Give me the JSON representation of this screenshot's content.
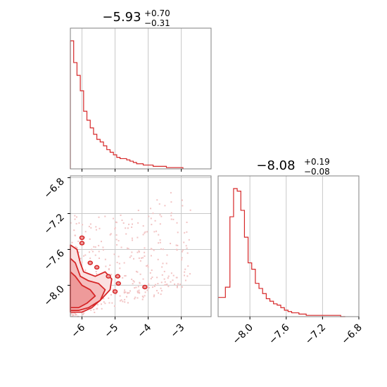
{
  "chart_data": [
    {
      "type": "histogram",
      "panel": "top-left",
      "title": {
        "median": "−5.93",
        "plus": "+0.70",
        "minus": "−0.31"
      },
      "xlim": [
        -6.35,
        -2.1
      ],
      "bin_edges": [
        -6.35,
        -6.25,
        -6.15,
        -6.05,
        -5.95,
        -5.85,
        -5.75,
        -5.65,
        -5.55,
        -5.45,
        -5.35,
        -5.25,
        -5.15,
        -5.05,
        -4.95,
        -4.85,
        -4.75,
        -4.65,
        -4.55,
        -4.45,
        -4.35,
        -4.25,
        -4.15,
        -4.05,
        -3.95,
        -3.85,
        -3.75,
        -3.65,
        -3.55,
        -3.45,
        -3.35,
        -3.25,
        -3.15,
        -3.05,
        -2.95
      ],
      "counts": [
        100,
        83,
        73,
        61,
        45,
        38,
        32,
        27,
        23,
        21,
        18,
        15,
        13,
        11,
        9,
        8,
        8,
        7,
        6,
        5,
        4,
        4,
        3,
        3,
        3,
        2,
        2,
        2,
        2,
        1,
        1,
        1,
        1,
        1
      ],
      "grid": true,
      "grid_x": [
        -6,
        -5,
        -4,
        -3
      ],
      "color": "#d62728"
    },
    {
      "type": "contour",
      "panel": "bottom-left",
      "xlim": [
        -6.35,
        -2.1
      ],
      "ylim": [
        -8.35,
        -6.78
      ],
      "xticks": [
        "−6",
        "−5",
        "−4",
        "−3"
      ],
      "xtick_values": [
        -6,
        -5,
        -4,
        -3
      ],
      "yticks": [
        "−6.8",
        "−7.2",
        "−7.6",
        "−8.0"
      ],
      "ytick_values": [
        -6.8,
        -7.2,
        -7.6,
        -8.0
      ],
      "grid": true,
      "contour_fill_color": "#f4b8b8",
      "contour_line_color": "#d62728",
      "point_color": "#f2c4c4"
    },
    {
      "type": "histogram",
      "panel": "bottom-right",
      "title": {
        "median": "−8.08",
        "plus": "+0.19",
        "minus": "−0.08"
      },
      "xlim": [
        -8.35,
        -6.8
      ],
      "xticks": [
        "−8.0",
        "−7.6",
        "−7.2",
        "−6.8"
      ],
      "xtick_values": [
        -8.0,
        -7.6,
        -7.2,
        -6.8
      ],
      "bin_edges": [
        -8.35,
        -8.27,
        -8.22,
        -8.18,
        -8.14,
        -8.1,
        -8.06,
        -8.02,
        -7.98,
        -7.94,
        -7.9,
        -7.86,
        -7.82,
        -7.78,
        -7.74,
        -7.7,
        -7.66,
        -7.62,
        -7.58,
        -7.54,
        -7.5,
        -7.46,
        -7.42,
        -7.38,
        -7.34,
        -7.3,
        -7.26,
        -7.1,
        -7.0,
        -6.95
      ],
      "counts": [
        15,
        23,
        78,
        100,
        98,
        83,
        62,
        42,
        37,
        26,
        22,
        18,
        14,
        12,
        10,
        9,
        7,
        5,
        4,
        3,
        3,
        2,
        2,
        1,
        1,
        1,
        1,
        1,
        0
      ],
      "grid": true,
      "grid_x": [
        -8.0,
        -7.6,
        -7.2
      ],
      "color": "#d62728"
    }
  ]
}
